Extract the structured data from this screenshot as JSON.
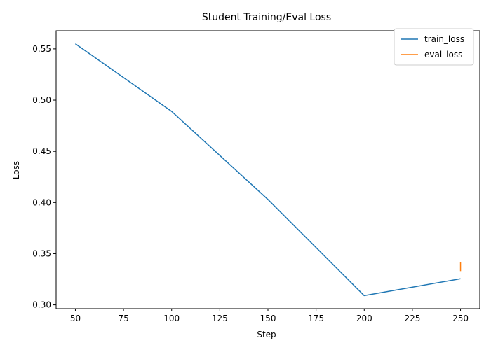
{
  "chart_data": {
    "type": "line",
    "title": "Student Training/Eval Loss",
    "xlabel": "Step",
    "ylabel": "Loss",
    "xlim": [
      40,
      260
    ],
    "ylim": [
      0.2963,
      0.5677
    ],
    "xticks": [
      50,
      75,
      100,
      125,
      150,
      175,
      200,
      225,
      250
    ],
    "yticks": [
      0.3,
      0.35,
      0.4,
      0.45,
      0.5,
      0.55
    ],
    "xtick_labels": [
      "50",
      "75",
      "100",
      "125",
      "150",
      "175",
      "200",
      "225",
      "250"
    ],
    "ytick_labels": [
      "0.30",
      "0.35",
      "0.40",
      "0.45",
      "0.50",
      "0.55"
    ],
    "grid": false,
    "legend_position": "top-right",
    "series": [
      {
        "name": "train_loss",
        "color": "#1f77b4",
        "x": [
          50,
          100,
          150,
          200,
          250
        ],
        "y": [
          0.555,
          0.489,
          0.403,
          0.309,
          0.3255
        ]
      },
      {
        "name": "eval_loss",
        "color": "#ff7f0e",
        "x": [
          250,
          250
        ],
        "y": [
          0.3415,
          0.333
        ]
      }
    ]
  }
}
